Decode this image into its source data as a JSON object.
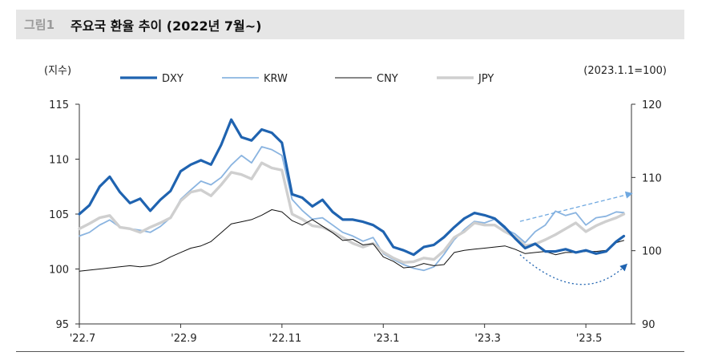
{
  "header": {
    "figure_label": "그림1",
    "title": "주요국 환율 추이 (2022년 7월~)"
  },
  "chart_data": {
    "type": "line",
    "left_axis_label": "(지수)",
    "right_axis_label": "(2023.1.1=100)",
    "y_left": {
      "min": 95,
      "max": 115,
      "ticks": [
        "95",
        "100",
        "105",
        "110",
        "115"
      ]
    },
    "y_right": {
      "min": 90,
      "max": 120,
      "ticks": [
        "90",
        "100",
        "110",
        "120"
      ]
    },
    "x_ticks": [
      "'22.7",
      "'22.9",
      "'22.11",
      "'23.1",
      "'23.3",
      "'23.5"
    ],
    "x_tick_pos": [
      0,
      2,
      4,
      6,
      8,
      10
    ],
    "x_range": [
      0,
      10.9
    ],
    "legend_position": "top",
    "series": [
      {
        "name": "DXY",
        "axis": "left",
        "color": "#1f63b0",
        "width": 3.2,
        "points": [
          [
            0,
            105.0
          ],
          [
            0.2,
            105.8
          ],
          [
            0.4,
            107.5
          ],
          [
            0.6,
            108.4
          ],
          [
            0.8,
            107.0
          ],
          [
            1.0,
            106.0
          ],
          [
            1.2,
            106.4
          ],
          [
            1.4,
            105.3
          ],
          [
            1.6,
            106.3
          ],
          [
            1.8,
            107.1
          ],
          [
            2.0,
            108.9
          ],
          [
            2.2,
            109.5
          ],
          [
            2.4,
            109.9
          ],
          [
            2.6,
            109.5
          ],
          [
            2.8,
            111.3
          ],
          [
            3.0,
            113.6
          ],
          [
            3.2,
            112.0
          ],
          [
            3.4,
            111.7
          ],
          [
            3.6,
            112.7
          ],
          [
            3.8,
            112.4
          ],
          [
            4.0,
            111.5
          ],
          [
            4.2,
            106.8
          ],
          [
            4.4,
            106.5
          ],
          [
            4.6,
            105.7
          ],
          [
            4.8,
            106.3
          ],
          [
            5.0,
            105.2
          ],
          [
            5.2,
            104.5
          ],
          [
            5.4,
            104.5
          ],
          [
            5.6,
            104.3
          ],
          [
            5.8,
            104.0
          ],
          [
            6.0,
            103.4
          ],
          [
            6.2,
            102.0
          ],
          [
            6.4,
            101.7
          ],
          [
            6.6,
            101.3
          ],
          [
            6.8,
            102.0
          ],
          [
            7.0,
            102.2
          ],
          [
            7.2,
            102.9
          ],
          [
            7.4,
            103.8
          ],
          [
            7.6,
            104.6
          ],
          [
            7.8,
            105.1
          ],
          [
            8.0,
            104.9
          ],
          [
            8.2,
            104.6
          ],
          [
            8.4,
            103.8
          ],
          [
            8.6,
            102.8
          ],
          [
            8.8,
            101.9
          ],
          [
            9.0,
            102.3
          ],
          [
            9.2,
            101.6
          ],
          [
            9.4,
            101.6
          ],
          [
            9.6,
            101.8
          ],
          [
            9.8,
            101.5
          ],
          [
            10.0,
            101.7
          ],
          [
            10.2,
            101.4
          ],
          [
            10.4,
            101.6
          ],
          [
            10.6,
            102.5
          ],
          [
            10.75,
            103.0
          ]
        ]
      },
      {
        "name": "KRW",
        "axis": "right",
        "color": "#8ab4e0",
        "width": 1.8,
        "points": [
          [
            0,
            102.0
          ],
          [
            0.2,
            102.5
          ],
          [
            0.4,
            103.5
          ],
          [
            0.6,
            104.2
          ],
          [
            0.8,
            103.2
          ],
          [
            1.0,
            103.0
          ],
          [
            1.2,
            102.8
          ],
          [
            1.4,
            102.5
          ],
          [
            1.6,
            103.3
          ],
          [
            1.8,
            104.5
          ],
          [
            2.0,
            107.0
          ],
          [
            2.2,
            108.3
          ],
          [
            2.4,
            109.5
          ],
          [
            2.6,
            109.0
          ],
          [
            2.8,
            110.0
          ],
          [
            3.0,
            111.7
          ],
          [
            3.2,
            113.0
          ],
          [
            3.4,
            112.0
          ],
          [
            3.6,
            114.2
          ],
          [
            3.8,
            113.8
          ],
          [
            4.0,
            113.0
          ],
          [
            4.2,
            107.0
          ],
          [
            4.4,
            105.5
          ],
          [
            4.6,
            104.3
          ],
          [
            4.8,
            104.5
          ],
          [
            5.0,
            103.5
          ],
          [
            5.2,
            102.5
          ],
          [
            5.4,
            102.0
          ],
          [
            5.6,
            101.3
          ],
          [
            5.8,
            101.8
          ],
          [
            6.0,
            99.6
          ],
          [
            6.2,
            98.8
          ],
          [
            6.4,
            98.1
          ],
          [
            6.6,
            97.6
          ],
          [
            6.8,
            97.3
          ],
          [
            7.0,
            97.8
          ],
          [
            7.2,
            99.5
          ],
          [
            7.4,
            101.5
          ],
          [
            7.6,
            102.9
          ],
          [
            7.8,
            104.0
          ],
          [
            8.0,
            103.8
          ],
          [
            8.2,
            104.3
          ],
          [
            8.4,
            103.0
          ],
          [
            8.6,
            102.3
          ],
          [
            8.8,
            101.1
          ],
          [
            9.0,
            102.6
          ],
          [
            9.2,
            103.5
          ],
          [
            9.4,
            105.4
          ],
          [
            9.6,
            104.8
          ],
          [
            9.8,
            105.2
          ],
          [
            10.0,
            103.5
          ],
          [
            10.2,
            104.5
          ],
          [
            10.4,
            104.7
          ],
          [
            10.6,
            105.3
          ],
          [
            10.75,
            105.2
          ]
        ]
      },
      {
        "name": "CNY",
        "axis": "left",
        "color": "#111111",
        "width": 1.0,
        "points": [
          [
            0,
            99.8
          ],
          [
            0.2,
            99.9
          ],
          [
            0.4,
            100.0
          ],
          [
            0.6,
            100.1
          ],
          [
            0.8,
            100.2
          ],
          [
            1.0,
            100.3
          ],
          [
            1.2,
            100.2
          ],
          [
            1.4,
            100.3
          ],
          [
            1.6,
            100.6
          ],
          [
            1.8,
            101.1
          ],
          [
            2.0,
            101.5
          ],
          [
            2.2,
            101.9
          ],
          [
            2.4,
            102.1
          ],
          [
            2.6,
            102.5
          ],
          [
            2.8,
            103.3
          ],
          [
            3.0,
            104.1
          ],
          [
            3.2,
            104.3
          ],
          [
            3.4,
            104.5
          ],
          [
            3.6,
            104.9
          ],
          [
            3.8,
            105.4
          ],
          [
            4.0,
            105.2
          ],
          [
            4.2,
            104.4
          ],
          [
            4.4,
            104.0
          ],
          [
            4.6,
            104.5
          ],
          [
            4.8,
            103.9
          ],
          [
            5.0,
            103.3
          ],
          [
            5.2,
            102.6
          ],
          [
            5.4,
            102.7
          ],
          [
            5.6,
            102.2
          ],
          [
            5.8,
            102.3
          ],
          [
            6.0,
            101.1
          ],
          [
            6.2,
            100.7
          ],
          [
            6.4,
            100.1
          ],
          [
            6.6,
            100.2
          ],
          [
            6.8,
            100.5
          ],
          [
            7.0,
            100.3
          ],
          [
            7.2,
            100.4
          ],
          [
            7.4,
            101.5
          ],
          [
            7.6,
            101.7
          ],
          [
            7.8,
            101.8
          ],
          [
            8.0,
            101.9
          ],
          [
            8.2,
            102.0
          ],
          [
            8.4,
            102.1
          ],
          [
            8.6,
            101.8
          ],
          [
            8.8,
            101.4
          ],
          [
            9.0,
            101.5
          ],
          [
            9.2,
            101.6
          ],
          [
            9.4,
            101.3
          ],
          [
            9.6,
            101.5
          ],
          [
            9.8,
            101.5
          ],
          [
            10.0,
            101.6
          ],
          [
            10.2,
            101.6
          ],
          [
            10.4,
            101.7
          ],
          [
            10.6,
            102.4
          ],
          [
            10.75,
            102.6
          ]
        ]
      },
      {
        "name": "JPY",
        "axis": "right",
        "color": "#cfcfcf",
        "width": 3.4,
        "points": [
          [
            0,
            103.0
          ],
          [
            0.2,
            103.7
          ],
          [
            0.4,
            104.5
          ],
          [
            0.6,
            104.8
          ],
          [
            0.8,
            103.2
          ],
          [
            1.0,
            103.0
          ],
          [
            1.2,
            102.5
          ],
          [
            1.4,
            103.2
          ],
          [
            1.6,
            103.8
          ],
          [
            1.8,
            104.5
          ],
          [
            2.0,
            106.8
          ],
          [
            2.2,
            108.0
          ],
          [
            2.4,
            108.3
          ],
          [
            2.6,
            107.5
          ],
          [
            2.8,
            109.0
          ],
          [
            3.0,
            110.7
          ],
          [
            3.2,
            110.4
          ],
          [
            3.4,
            109.8
          ],
          [
            3.6,
            112.0
          ],
          [
            3.8,
            111.3
          ],
          [
            4.0,
            111.0
          ],
          [
            4.2,
            105.0
          ],
          [
            4.4,
            104.3
          ],
          [
            4.6,
            103.4
          ],
          [
            4.8,
            103.2
          ],
          [
            5.0,
            102.6
          ],
          [
            5.2,
            101.8
          ],
          [
            5.4,
            101.0
          ],
          [
            5.6,
            100.5
          ],
          [
            5.8,
            101.0
          ],
          [
            6.0,
            99.8
          ],
          [
            6.2,
            99.0
          ],
          [
            6.4,
            98.4
          ],
          [
            6.6,
            98.5
          ],
          [
            6.8,
            99.0
          ],
          [
            7.0,
            98.8
          ],
          [
            7.2,
            100.0
          ],
          [
            7.4,
            101.8
          ],
          [
            7.6,
            102.6
          ],
          [
            7.8,
            103.8
          ],
          [
            8.0,
            103.5
          ],
          [
            8.2,
            103.5
          ],
          [
            8.4,
            102.6
          ],
          [
            8.6,
            101.9
          ],
          [
            8.8,
            100.7
          ],
          [
            9.0,
            100.9
          ],
          [
            9.2,
            101.5
          ],
          [
            9.4,
            102.2
          ],
          [
            9.6,
            103.0
          ],
          [
            9.8,
            103.8
          ],
          [
            10.0,
            102.6
          ],
          [
            10.2,
            103.4
          ],
          [
            10.4,
            104.0
          ],
          [
            10.6,
            104.5
          ],
          [
            10.75,
            105.0
          ]
        ]
      }
    ],
    "annotations": [
      {
        "type": "arrow",
        "style": "dashed",
        "color": "#6fa8e0",
        "from": [
          8.7,
          104.0
        ],
        "to": [
          10.9,
          107.8
        ],
        "axis": "right"
      },
      {
        "type": "arrow",
        "style": "dotted",
        "color": "#1f63b0",
        "from": [
          8.7,
          101.3
        ],
        "to": [
          10.8,
          100.4
        ],
        "axis": "left",
        "curved": true
      }
    ]
  }
}
